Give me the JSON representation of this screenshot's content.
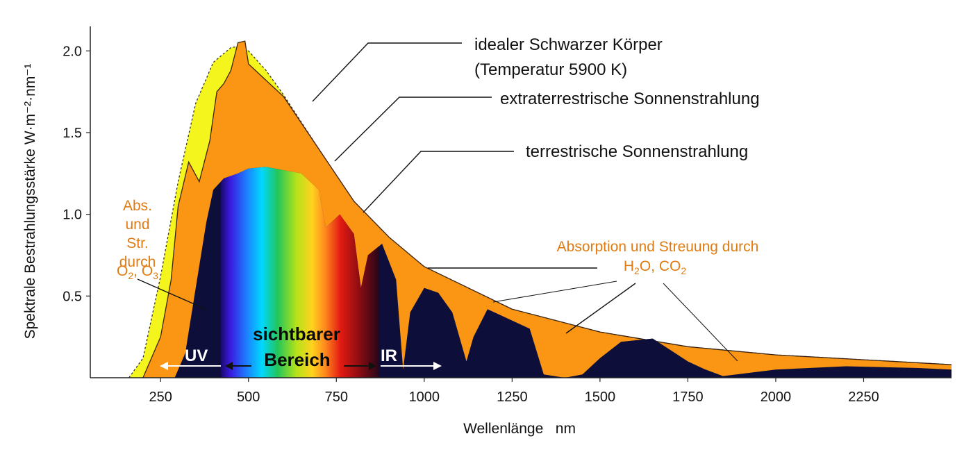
{
  "chart_data": {
    "type": "area",
    "xlabel": "Wellenlänge   nm",
    "ylabel": "Spektrale Bestrahlungsstärke W·m⁻²·nm⁻¹",
    "xlim": [
      50,
      2500
    ],
    "ylim": [
      0,
      2.15
    ],
    "xticks": [
      250,
      500,
      750,
      1000,
      1250,
      1500,
      1750,
      2000,
      2250
    ],
    "xtick_labels": [
      "250",
      "500",
      "750",
      "1000",
      "1250",
      "1500",
      "1750",
      "2000",
      "2250"
    ],
    "yticks": [
      0.5,
      1.0,
      1.5,
      2.0
    ],
    "ytick_labels": [
      "0.5",
      "1.0",
      "1.5",
      "2.0"
    ],
    "grid": false,
    "colors": {
      "blackbody": "#f5f51e",
      "extraterrestrial": "#fa9614",
      "terrestrial": "#0d0f3a",
      "absorption_text": "#e07b12"
    },
    "series": [
      {
        "name": "idealer Schwarzer Körper (Temperatur 5900 K)",
        "x": [
          160,
          200,
          250,
          300,
          350,
          400,
          450,
          480,
          500,
          550,
          600,
          700,
          800,
          900,
          1000,
          1250,
          1500,
          1750,
          2000,
          2250,
          2500
        ],
        "y": [
          0,
          0.12,
          0.62,
          1.2,
          1.68,
          1.93,
          2.02,
          2.03,
          2.0,
          1.88,
          1.73,
          1.4,
          1.08,
          0.85,
          0.68,
          0.42,
          0.28,
          0.19,
          0.14,
          0.11,
          0.08
        ]
      },
      {
        "name": "extraterrestrische Sonnenstrahlung",
        "x": [
          200,
          250,
          280,
          300,
          330,
          360,
          390,
          410,
          430,
          450,
          470,
          490,
          500,
          550,
          600,
          700,
          800,
          900,
          1000,
          1250,
          1500,
          1750,
          2000,
          2250,
          2500
        ],
        "y": [
          0,
          0.25,
          0.6,
          1.05,
          1.32,
          1.2,
          1.45,
          1.75,
          1.8,
          1.88,
          2.05,
          2.06,
          1.92,
          1.82,
          1.72,
          1.4,
          1.08,
          0.86,
          0.68,
          0.42,
          0.28,
          0.19,
          0.14,
          0.11,
          0.08
        ]
      },
      {
        "name": "terrestrische Sonnenstrahlung",
        "x": [
          290,
          320,
          350,
          380,
          400,
          430,
          470,
          500,
          550,
          600,
          650,
          700,
          720,
          760,
          800,
          820,
          840,
          880,
          920,
          940,
          960,
          1000,
          1040,
          1080,
          1120,
          1140,
          1180,
          1220,
          1300,
          1340,
          1400,
          1450,
          1500,
          1560,
          1650,
          1750,
          1800,
          1850,
          2000,
          2200,
          2400,
          2500
        ],
        "y": [
          0,
          0.15,
          0.55,
          0.95,
          1.15,
          1.22,
          1.25,
          1.28,
          1.29,
          1.27,
          1.25,
          1.15,
          0.92,
          1.0,
          0.88,
          0.55,
          0.75,
          0.82,
          0.6,
          0.05,
          0.4,
          0.55,
          0.52,
          0.4,
          0.1,
          0.25,
          0.42,
          0.38,
          0.3,
          0.02,
          0.0,
          0.02,
          0.12,
          0.22,
          0.24,
          0.1,
          0.05,
          0.01,
          0.05,
          0.07,
          0.06,
          0.05
        ]
      }
    ],
    "annotations": {
      "blackbody_line1": "idealer Schwarzer Körper",
      "blackbody_line2": "(Temperatur 5900 K)",
      "extraterrestrial": "extraterrestrische Sonnenstrahlung",
      "terrestrial": "terrestrische Sonnenstrahlung",
      "abs_line1": "Abs.",
      "abs_line2": "und",
      "abs_line3": "Str.",
      "abs_line4": "durch",
      "abs_o2": "O",
      "abs_o2_sub": "2",
      "abs_sep": ", O",
      "abs_o3_sub": "3",
      "absorption_line1": "Absorption und Streuung durch",
      "absorption_h": "H",
      "absorption_h_sub": "2",
      "absorption_co": "O, CO",
      "absorption_co_sub": "2",
      "uv": "UV",
      "visible_line1": "sichtbarer",
      "visible_line2": "Bereich",
      "ir": "IR"
    }
  }
}
